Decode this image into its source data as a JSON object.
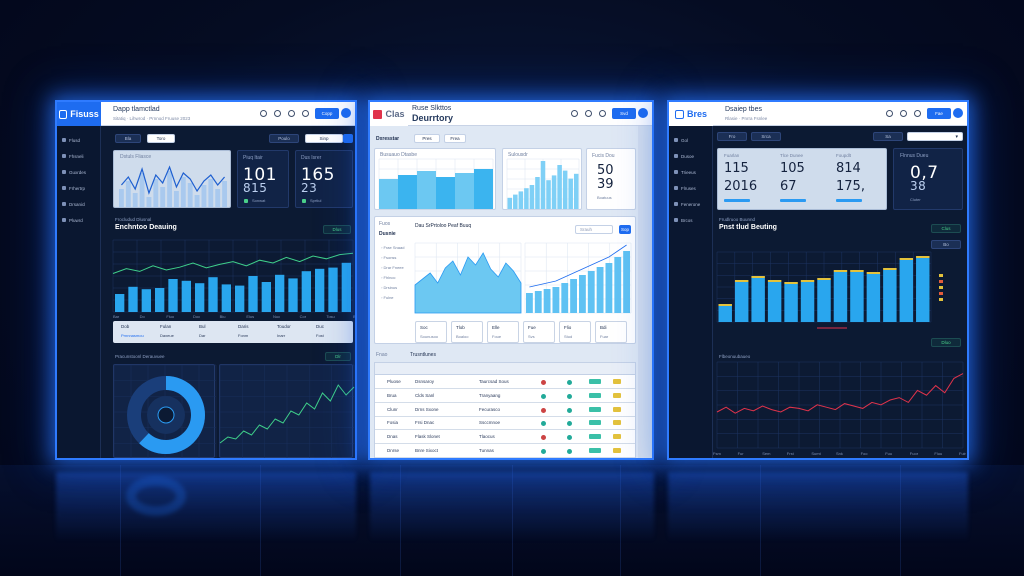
{
  "screens": {
    "left": {
      "logo_label": "Fisuss",
      "header_title": "Dapp tlamctlad",
      "header_subtitle": "Sitatiq · Lihwrod · Prnnod Fruuse 2023",
      "header_button": "Copp",
      "filter_a": "Bla",
      "filter_b": "Toro",
      "filter_c": "Poulo",
      "filter_d": "Sinp",
      "sidebar": [
        "Flusd",
        "Fhsneli",
        "Guxrdes",
        "Frhertrp",
        "Drsanicl",
        "Pluwrd"
      ],
      "chart_label": "Dstuls Fliasce",
      "kpi_1_label": "Piuq Itair",
      "kpi_1_value": "101",
      "kpi_1_sub": "815",
      "kpi_1_note": "Sonwat",
      "kpi_2_label": "Dus Isrer",
      "kpi_2_value": "165",
      "kpi_2_sub": "23",
      "kpi_2_note": "Sprtlul",
      "section_title": "Enchntoo Deauing",
      "section_small": "Frocludud Dlusnal",
      "section_badge": "Dlus",
      "stats": [
        "Dob",
        "Fulan",
        "Bul",
        "Daris",
        "Toudor",
        "Duc"
      ],
      "stat_notes": [
        "Prnnnasmou",
        "Daxeue",
        "Dar",
        "Fonm",
        "Inarr",
        "Fost"
      ],
      "bottom_title": "Pracunstoonl Derauvuee",
      "bottom_badge": "Dlr",
      "bars": [
        30,
        42,
        38,
        40,
        55,
        52,
        48,
        58,
        46,
        44,
        60,
        50,
        62,
        56,
        68,
        72,
        74,
        82
      ],
      "line": [
        55,
        62,
        58,
        66,
        60,
        64,
        70,
        63,
        68,
        72,
        66,
        74,
        70,
        78,
        72,
        80,
        76,
        82,
        84
      ],
      "x_ticks": [
        "Bar",
        "Do",
        "Fluo",
        "Doc",
        "Biu",
        "Elus",
        "Nuc",
        "Cor",
        "Tosu",
        "Bof"
      ]
    },
    "center": {
      "logo_label": "Clas",
      "header_title": "Deurrtory",
      "header_subtitle": "Ruse Slkttos",
      "header_button": "Svd",
      "toolbar": [
        "Dxresstar",
        "Pres",
        "Frea"
      ],
      "sidebar": [
        "Tool",
        "Chocs",
        "Tondeor",
        "Fneuredu",
        "Fnsduore",
        "Tlresols"
      ],
      "card_a_title": "Busuauo Dtasbe",
      "card_b_title": "Sulousdr",
      "kpi_label": "Fucis Dou",
      "kpi_value": "50",
      "kpi_value_2": "39",
      "kpi_note": "Boatuus",
      "section_title": "Dau SrPrtoloo Peaf Buuq",
      "section_nav_a": "Fuos",
      "section_nav_b": "Dusnie",
      "search_placeholder": "Srauh",
      "btn_a": "Sop",
      "btn_b": "Nos",
      "nav_list": [
        "Frae Snaad",
        "Fsonss",
        "Drar Fneee",
        "Fhlnoc",
        "Drsinus",
        "Fulne"
      ],
      "stats": [
        "Soc",
        "Tlob",
        "Elle",
        "Fue",
        "Flio",
        "Bdi"
      ],
      "stat_notes": [
        "Sounusoo",
        "Boaloo",
        "Foue",
        "Svs",
        "Stud",
        "Fuar"
      ],
      "table_title": "Trusntlunes",
      "table_label": "Fnao",
      "table_rows": [
        {
          "name": "Pluose",
          "detail": "Dsnsaroy",
          "status": "Taurcsad Sous"
        },
        {
          "name": "Brua",
          "detail": "Clds Sanl",
          "status": "Tranyaang"
        },
        {
          "name": "Clunr",
          "detail": "Drns Sxone",
          "status": "Fecurasco"
        },
        {
          "name": "Fosia",
          "detail": "Frsi Dnac",
          "status": "Ssccmnoe"
        },
        {
          "name": "Dnas",
          "detail": "Flask Slonet",
          "status": "Tlaocus"
        },
        {
          "name": "Dnrse",
          "detail": "Bnre Sixoct",
          "status": "Tunnas"
        }
      ],
      "area": [
        28,
        34,
        40,
        30,
        45,
        52,
        38,
        56,
        48,
        60,
        44,
        36,
        50,
        42,
        30
      ],
      "bars": [
        20,
        22,
        24,
        26,
        30,
        34,
        38,
        42,
        46,
        50,
        56,
        62
      ],
      "bar_a": [
        30,
        34,
        38,
        32,
        36,
        40
      ],
      "bar_b": [
        14,
        18,
        22,
        26,
        30,
        40,
        60,
        36,
        42,
        55,
        48,
        38,
        44
      ]
    },
    "right": {
      "logo_label": "Bres",
      "header_title": "Dsaiep tbes",
      "header_subtitle": "Rlasie · Pnrra Fsnlee",
      "header_button": "Fae",
      "filters": [
        "Fro",
        "Srca",
        "Sa"
      ],
      "sidebar": [
        "Gol",
        "Dusoe",
        "Trieeus",
        "Flruses",
        "Fenerone",
        "Brcos"
      ],
      "kpis": [
        {
          "label": "Fuarlan",
          "value": "115",
          "sub": "2016"
        },
        {
          "label": "Tlce Dunee",
          "value": "105",
          "sub": "67"
        },
        {
          "label": "Foupdlt",
          "value": "814",
          "sub": "175,"
        }
      ],
      "kpi_dark_label": "Flnnus Dueu",
      "kpi_dark_value": "0,7",
      "kpi_dark_sub": "38",
      "kpi_dark_note": "Cluter",
      "section_small": "Frudlruoo Buunnd",
      "section_title": "Pnst tlud Beuting",
      "section_badge": "Clus",
      "legend": "Bo",
      "bars": [
        16,
        40,
        44,
        40,
        38,
        40,
        42,
        50,
        50,
        48,
        52,
        62,
        64
      ],
      "bottom_title": "Flbeonuubaueo",
      "bottom_badge": "Dluo",
      "line": [
        30,
        34,
        29,
        33,
        31,
        35,
        32,
        30,
        34,
        33,
        31,
        36,
        34,
        32,
        37,
        35,
        33,
        38,
        36,
        40,
        42,
        38,
        48,
        44,
        52,
        46,
        58,
        62
      ],
      "x_ticks": [
        "Fsm",
        "Fur",
        "Sem",
        "Frst",
        "Sumt",
        "Snk",
        "Foo",
        "Fuu",
        "Fuor",
        "Fluu",
        "Fuir"
      ]
    }
  },
  "colors": {
    "accent": "#2f7bff",
    "bar": "#29a6ee",
    "line_green": "#3fd08a",
    "line_red": "#e0334b",
    "dark_bg": "#0c1a33",
    "light_bg": "#dfe8f4"
  }
}
